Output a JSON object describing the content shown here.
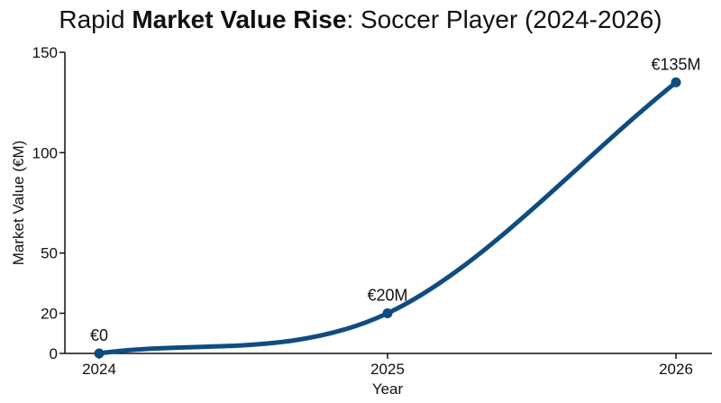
{
  "chart_data": {
    "type": "line",
    "title_parts": [
      "Rapid ",
      "Market Value Rise",
      ": Soccer Player (2024-2026)"
    ],
    "title_bold_index": 1,
    "xlabel": "Year",
    "ylabel": "Market Value (€M)",
    "categories": [
      "2024",
      "2025",
      "2026"
    ],
    "x": [
      2024,
      2025,
      2026
    ],
    "ylim": [
      0,
      150
    ],
    "yticks": [
      0,
      20,
      50,
      100,
      150
    ],
    "series": [
      {
        "values": [
          0,
          20,
          135
        ],
        "data_labels": [
          "€0",
          "€20M",
          "€135M"
        ]
      }
    ],
    "grid": false,
    "line_color": "#0f4c81"
  }
}
